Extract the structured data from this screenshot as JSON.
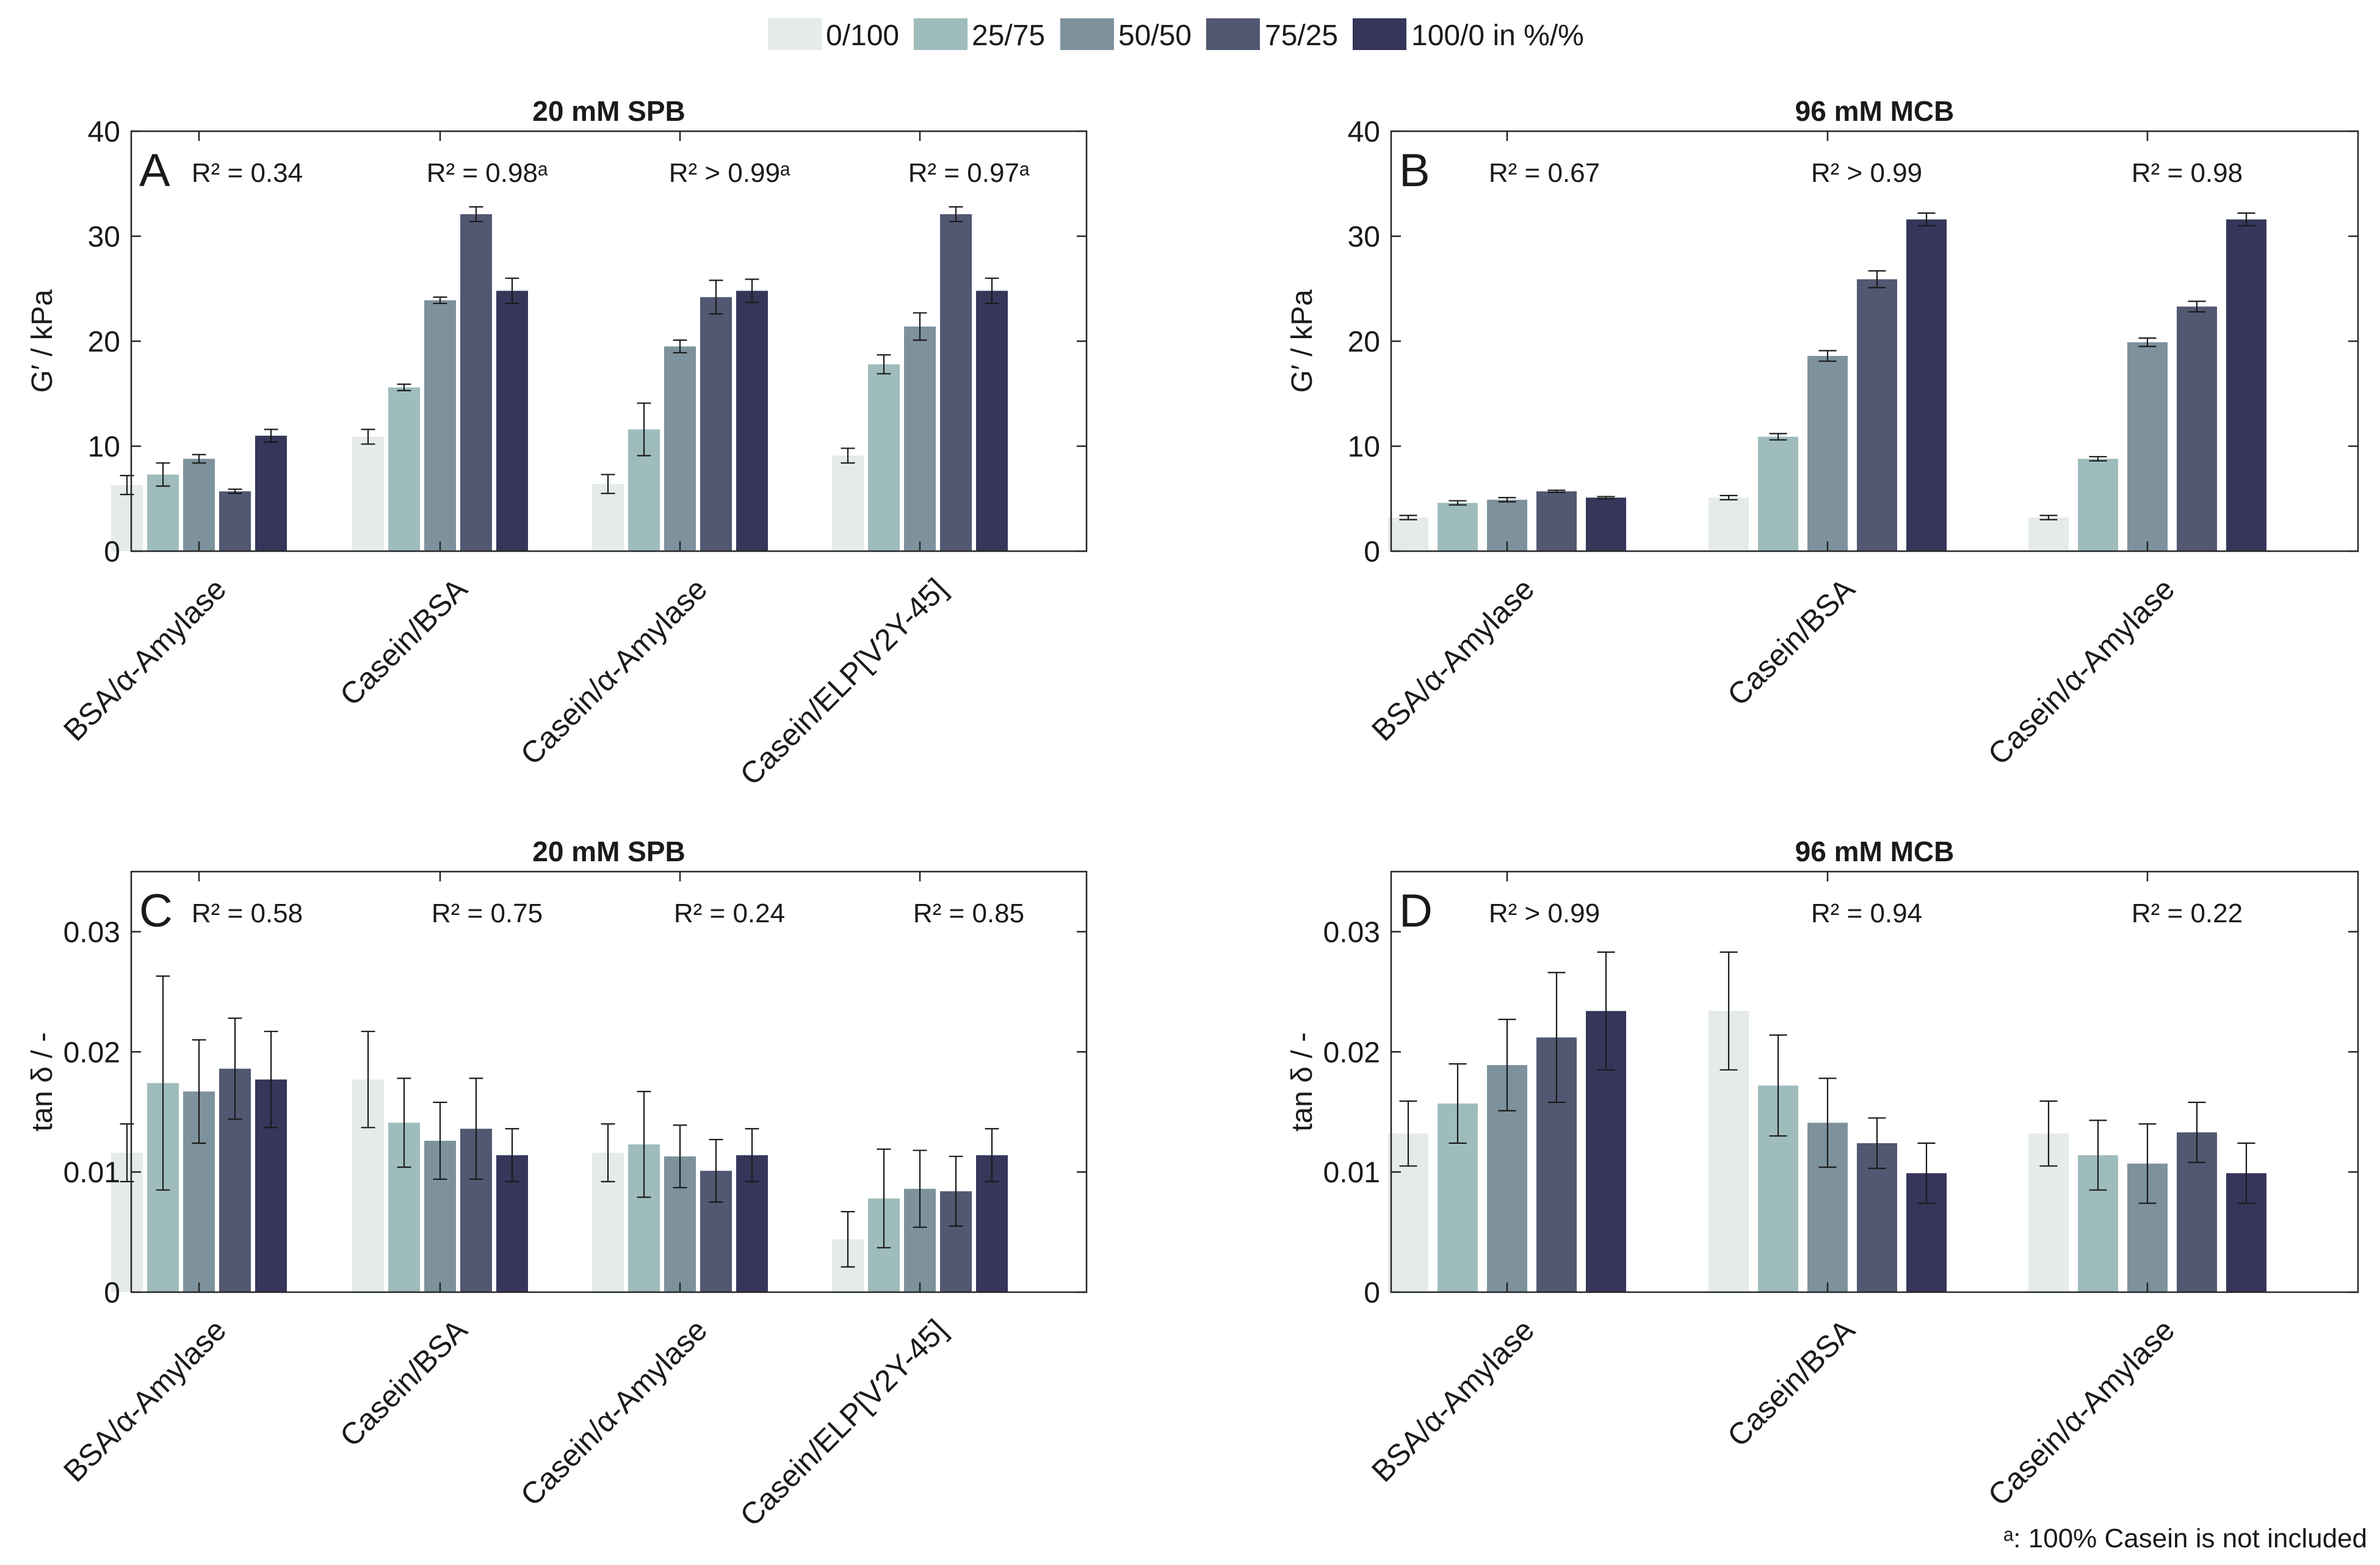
{
  "legend": {
    "entries": [
      "0/100",
      "25/75",
      "50/50",
      "75/25",
      "100/0 in %/%"
    ],
    "colors": [
      "#e4ebea",
      "#9fbcbc",
      "#7d929d",
      "#525872",
      "#35365a"
    ]
  },
  "footnote": "ᵃ: 100% Casein is not included",
  "chart_data": [
    {
      "panel": "A",
      "type": "bar",
      "title": "20 mM SPB",
      "ylabel": "G′ / kPa",
      "ylim": [
        0,
        40
      ],
      "yticks": [
        0,
        10,
        20,
        30,
        40
      ],
      "ytick_labels": [
        "0",
        "10",
        "20",
        "30",
        "40"
      ],
      "categories": [
        "BSA/α-Amylase",
        "Casein/BSA",
        "Casein/α-Amylase",
        "Casein/ELP[V2Y-45]"
      ],
      "r2_labels": [
        "R² = 0.34",
        "R² = 0.98ᵃ",
        "R² > 0.99ᵃ",
        "R² = 0.97ᵃ"
      ],
      "series": [
        {
          "name": "0/100",
          "values": [
            6.3,
            10.9,
            6.4,
            9.1
          ],
          "errors": [
            0.9,
            0.7,
            0.9,
            0.7
          ]
        },
        {
          "name": "25/75",
          "values": [
            7.3,
            15.6,
            11.6,
            17.8
          ],
          "errors": [
            1.1,
            0.3,
            2.5,
            0.9
          ]
        },
        {
          "name": "50/50",
          "values": [
            8.8,
            23.9,
            19.5,
            21.4
          ],
          "errors": [
            0.4,
            0.3,
            0.6,
            1.3
          ]
        },
        {
          "name": "75/25",
          "values": [
            5.7,
            32.1,
            24.2,
            32.1
          ],
          "errors": [
            0.2,
            0.7,
            1.6,
            0.7
          ]
        },
        {
          "name": "100/0 in %/%",
          "values": [
            11.0,
            24.8,
            24.8,
            24.8
          ],
          "errors": [
            0.6,
            1.2,
            1.1,
            1.2
          ]
        }
      ]
    },
    {
      "panel": "B",
      "type": "bar",
      "title": "96 mM MCB",
      "ylabel": "G′ / kPa",
      "ylim": [
        0,
        40
      ],
      "yticks": [
        0,
        10,
        20,
        30,
        40
      ],
      "ytick_labels": [
        "0",
        "10",
        "20",
        "30",
        "40"
      ],
      "categories": [
        "BSA/α-Amylase",
        "Casein/BSA",
        "Casein/α-Amylase"
      ],
      "r2_labels": [
        "R² = 0.67",
        "R² > 0.99",
        "R² = 0.98"
      ],
      "series": [
        {
          "name": "0/100",
          "values": [
            3.2,
            5.1,
            3.2
          ],
          "errors": [
            0.2,
            0.2,
            0.2
          ]
        },
        {
          "name": "25/75",
          "values": [
            4.6,
            10.9,
            8.8
          ],
          "errors": [
            0.2,
            0.3,
            0.2
          ]
        },
        {
          "name": "50/50",
          "values": [
            4.9,
            18.6,
            19.9
          ],
          "errors": [
            0.2,
            0.5,
            0.4
          ]
        },
        {
          "name": "75/25",
          "values": [
            5.7,
            25.9,
            23.3
          ],
          "errors": [
            0.1,
            0.8,
            0.5
          ]
        },
        {
          "name": "100/0 in %/%",
          "values": [
            5.1,
            31.6,
            31.6
          ],
          "errors": [
            0.1,
            0.6,
            0.6
          ]
        }
      ]
    },
    {
      "panel": "C",
      "type": "bar",
      "title": "20 mM SPB",
      "ylabel": "tan δ / -",
      "ylim": [
        0,
        0.035
      ],
      "yticks": [
        0,
        0.01,
        0.02,
        0.03
      ],
      "ytick_labels": [
        "0",
        "0.01",
        "0.02",
        "0.03"
      ],
      "categories": [
        "BSA/α-Amylase",
        "Casein/BSA",
        "Casein/α-Amylase",
        "Casein/ELP[V2Y-45]"
      ],
      "r2_labels": [
        "R² = 0.58",
        "R² = 0.75",
        "R² = 0.24",
        "R² = 0.85"
      ],
      "series": [
        {
          "name": "0/100",
          "values": [
            0.0116,
            0.0177,
            0.0116,
            0.0044
          ],
          "errors": [
            0.0024,
            0.004,
            0.0024,
            0.0023
          ]
        },
        {
          "name": "25/75",
          "values": [
            0.0174,
            0.0141,
            0.0123,
            0.0078
          ],
          "errors": [
            0.0089,
            0.0037,
            0.0044,
            0.0041
          ]
        },
        {
          "name": "50/50",
          "values": [
            0.0167,
            0.0126,
            0.0113,
            0.0086
          ],
          "errors": [
            0.0043,
            0.0032,
            0.0026,
            0.0032
          ]
        },
        {
          "name": "75/25",
          "values": [
            0.0186,
            0.0136,
            0.0101,
            0.0084
          ],
          "errors": [
            0.0042,
            0.0042,
            0.0026,
            0.0029
          ]
        },
        {
          "name": "100/0 in %/%",
          "values": [
            0.0177,
            0.0114,
            0.0114,
            0.0114
          ],
          "errors": [
            0.004,
            0.0022,
            0.0022,
            0.0022
          ]
        }
      ]
    },
    {
      "panel": "D",
      "type": "bar",
      "title": "96 mM MCB",
      "ylabel": "tan δ / -",
      "ylim": [
        0,
        0.035
      ],
      "yticks": [
        0,
        0.01,
        0.02,
        0.03
      ],
      "ytick_labels": [
        "0",
        "0.01",
        "0.02",
        "0.03"
      ],
      "categories": [
        "BSA/α-Amylase",
        "Casein/BSA",
        "Casein/α-Amylase"
      ],
      "r2_labels": [
        "R² > 0.99",
        "R² = 0.94",
        "R² = 0.22"
      ],
      "series": [
        {
          "name": "0/100",
          "values": [
            0.0132,
            0.0234,
            0.0132
          ],
          "errors": [
            0.0027,
            0.0049,
            0.0027
          ]
        },
        {
          "name": "25/75",
          "values": [
            0.0157,
            0.0172,
            0.0114
          ],
          "errors": [
            0.0033,
            0.0042,
            0.0029
          ]
        },
        {
          "name": "50/50",
          "values": [
            0.0189,
            0.0141,
            0.0107
          ],
          "errors": [
            0.0038,
            0.0037,
            0.0033
          ]
        },
        {
          "name": "75/25",
          "values": [
            0.0212,
            0.0124,
            0.0133
          ],
          "errors": [
            0.0054,
            0.0021,
            0.0025
          ]
        },
        {
          "name": "100/0 in %/%",
          "values": [
            0.0234,
            0.0099,
            0.0099
          ],
          "errors": [
            0.0049,
            0.0025,
            0.0025
          ]
        }
      ]
    }
  ]
}
